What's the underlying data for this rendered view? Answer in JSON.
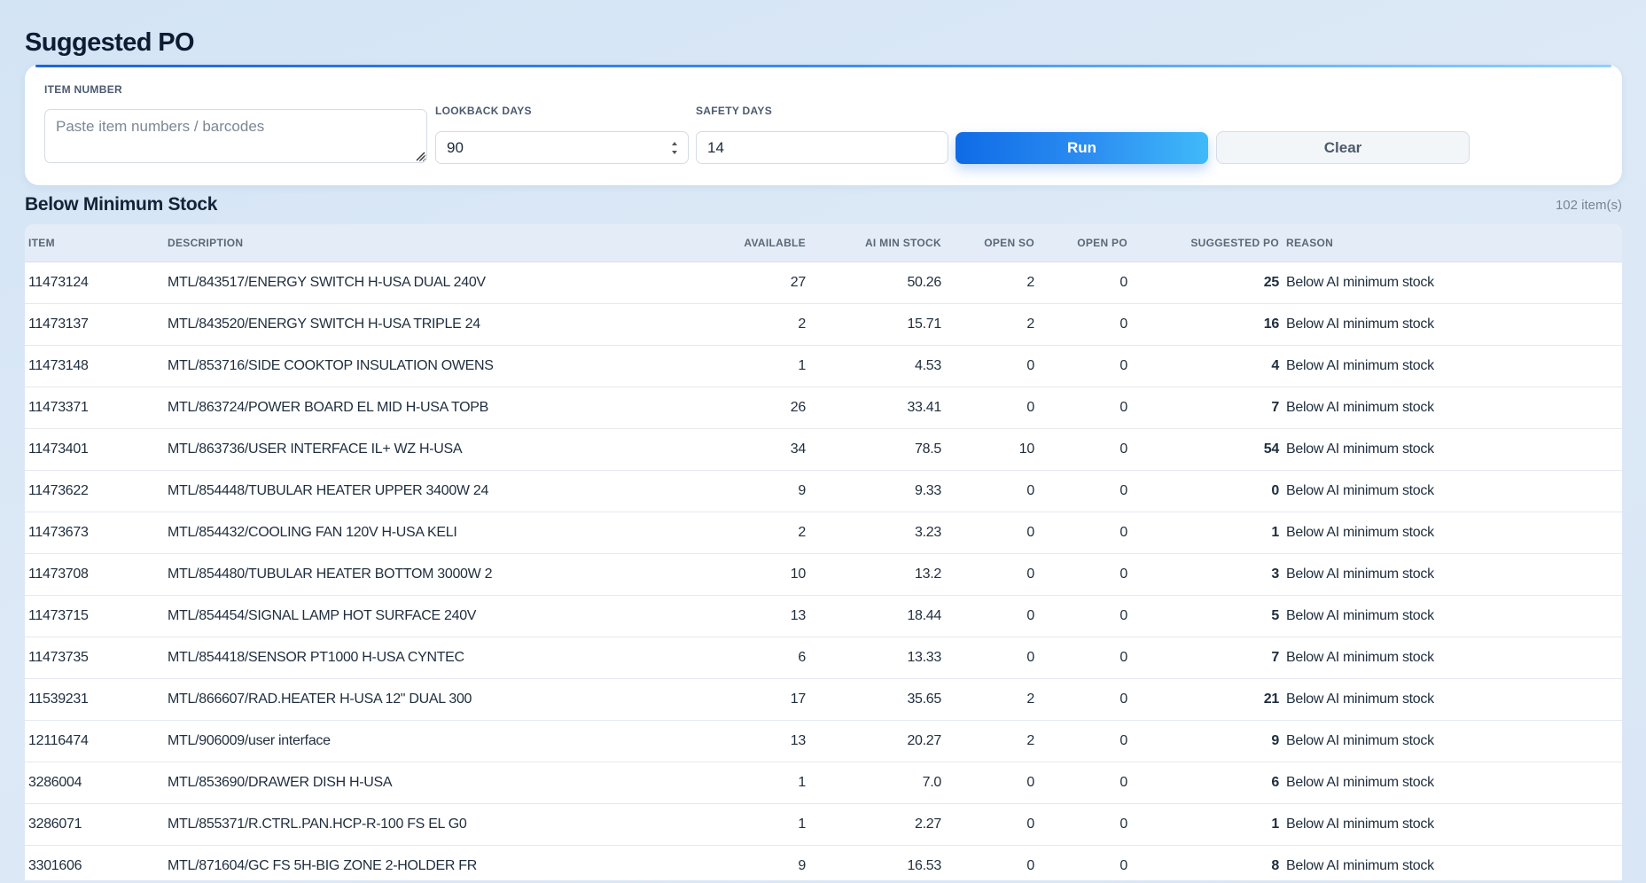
{
  "page": {
    "title": "Suggested PO"
  },
  "form": {
    "item_number_label": "ITEM NUMBER",
    "item_number_placeholder": "Paste item numbers / barcodes",
    "item_number_value": "",
    "lookback_label": "LOOKBACK DAYS",
    "lookback_value": "90",
    "safety_label": "SAFETY DAYS",
    "safety_value": "14",
    "run_label": "Run",
    "clear_label": "Clear"
  },
  "section": {
    "title": "Below Minimum Stock",
    "count": "102 item(s)"
  },
  "table": {
    "columns": [
      "ITEM",
      "DESCRIPTION",
      "AVAILABLE",
      "AI MIN STOCK",
      "OPEN SO",
      "OPEN PO",
      "SUGGESTED PO",
      "REASON"
    ],
    "rows": [
      [
        "11473124",
        "MTL/843517/ENERGY SWITCH H-USA DUAL 240V",
        "27",
        "50.26",
        "2",
        "0",
        "25",
        "Below AI minimum stock"
      ],
      [
        "11473137",
        "MTL/843520/ENERGY SWITCH H-USA TRIPLE 24",
        "2",
        "15.71",
        "2",
        "0",
        "16",
        "Below AI minimum stock"
      ],
      [
        "11473148",
        "MTL/853716/SIDE COOKTOP INSULATION OWENS",
        "1",
        "4.53",
        "0",
        "0",
        "4",
        "Below AI minimum stock"
      ],
      [
        "11473371",
        "MTL/863724/POWER BOARD EL MID H-USA TOPB",
        "26",
        "33.41",
        "0",
        "0",
        "7",
        "Below AI minimum stock"
      ],
      [
        "11473401",
        "MTL/863736/USER INTERFACE IL+ WZ H-USA",
        "34",
        "78.5",
        "10",
        "0",
        "54",
        "Below AI minimum stock"
      ],
      [
        "11473622",
        "MTL/854448/TUBULAR HEATER UPPER 3400W 24",
        "9",
        "9.33",
        "0",
        "0",
        "0",
        "Below AI minimum stock"
      ],
      [
        "11473673",
        "MTL/854432/COOLING FAN 120V H-USA KELI",
        "2",
        "3.23",
        "0",
        "0",
        "1",
        "Below AI minimum stock"
      ],
      [
        "11473708",
        "MTL/854480/TUBULAR HEATER BOTTOM 3000W 2",
        "10",
        "13.2",
        "0",
        "0",
        "3",
        "Below AI minimum stock"
      ],
      [
        "11473715",
        "MTL/854454/SIGNAL LAMP HOT SURFACE 240V",
        "13",
        "18.44",
        "0",
        "0",
        "5",
        "Below AI minimum stock"
      ],
      [
        "11473735",
        "MTL/854418/SENSOR PT1000 H-USA CYNTEC",
        "6",
        "13.33",
        "0",
        "0",
        "7",
        "Below AI minimum stock"
      ],
      [
        "11539231",
        "MTL/866607/RAD.HEATER H-USA 12\" DUAL 300",
        "17",
        "35.65",
        "2",
        "0",
        "21",
        "Below AI minimum stock"
      ],
      [
        "12116474",
        "MTL/906009/user interface",
        "13",
        "20.27",
        "2",
        "0",
        "9",
        "Below AI minimum stock"
      ],
      [
        "3286004",
        "MTL/853690/DRAWER DISH H-USA",
        "1",
        "7.0",
        "0",
        "0",
        "6",
        "Below AI minimum stock"
      ],
      [
        "3286071",
        "MTL/855371/R.CTRL.PAN.HCP-R-100 FS EL G0",
        "1",
        "2.27",
        "0",
        "0",
        "1",
        "Below AI minimum stock"
      ],
      [
        "3301606",
        "MTL/871604/GC FS 5H-BIG ZONE 2-HOLDER FR",
        "9",
        "16.53",
        "0",
        "0",
        "8",
        "Below AI minimum stock"
      ]
    ]
  }
}
